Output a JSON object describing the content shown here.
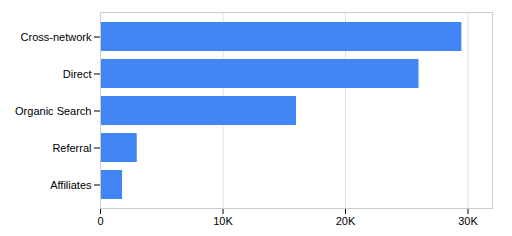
{
  "chart_data": {
    "type": "bar",
    "orientation": "horizontal",
    "categories": [
      "Affiliates",
      "Referral",
      "Organic Search",
      "Direct",
      "Cross-network"
    ],
    "values": [
      1800,
      3000,
      16000,
      26000,
      29500
    ],
    "color": "#4285f4",
    "xlim": [
      0,
      32000
    ],
    "xticks": [
      0,
      {
        "value": 10000,
        "label": "10K"
      },
      {
        "value": 20000,
        "label": "20K"
      },
      {
        "value": 30000,
        "label": "30K"
      }
    ],
    "grid": true
  }
}
